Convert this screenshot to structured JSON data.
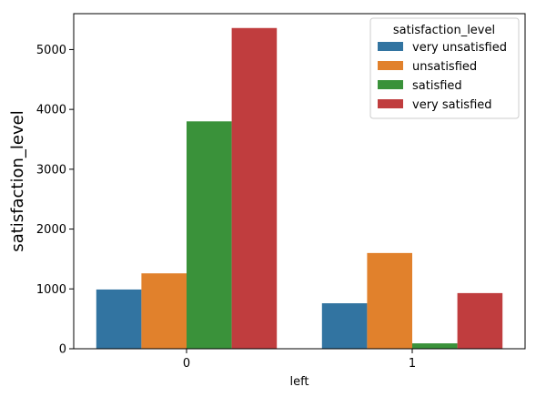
{
  "chart_data": {
    "type": "bar",
    "title": "",
    "xlabel": "left",
    "ylabel": "satisfaction_level",
    "categories": [
      "0",
      "1"
    ],
    "ylim": [
      0,
      5600
    ],
    "yticks": [
      0,
      1000,
      2000,
      3000,
      4000,
      5000
    ],
    "grid": false,
    "legend": {
      "title": "satisfaction_level",
      "placement": "top-right"
    },
    "series": [
      {
        "name": "very unsatisfied",
        "color": "#3274a1",
        "values": [
          990,
          760
        ]
      },
      {
        "name": "unsatisfied",
        "color": "#e1812c",
        "values": [
          1260,
          1600
        ]
      },
      {
        "name": "satisfied",
        "color": "#3a923a",
        "values": [
          3800,
          90
        ]
      },
      {
        "name": "very satisfied",
        "color": "#c03d3e",
        "values": [
          5360,
          930
        ]
      }
    ]
  }
}
